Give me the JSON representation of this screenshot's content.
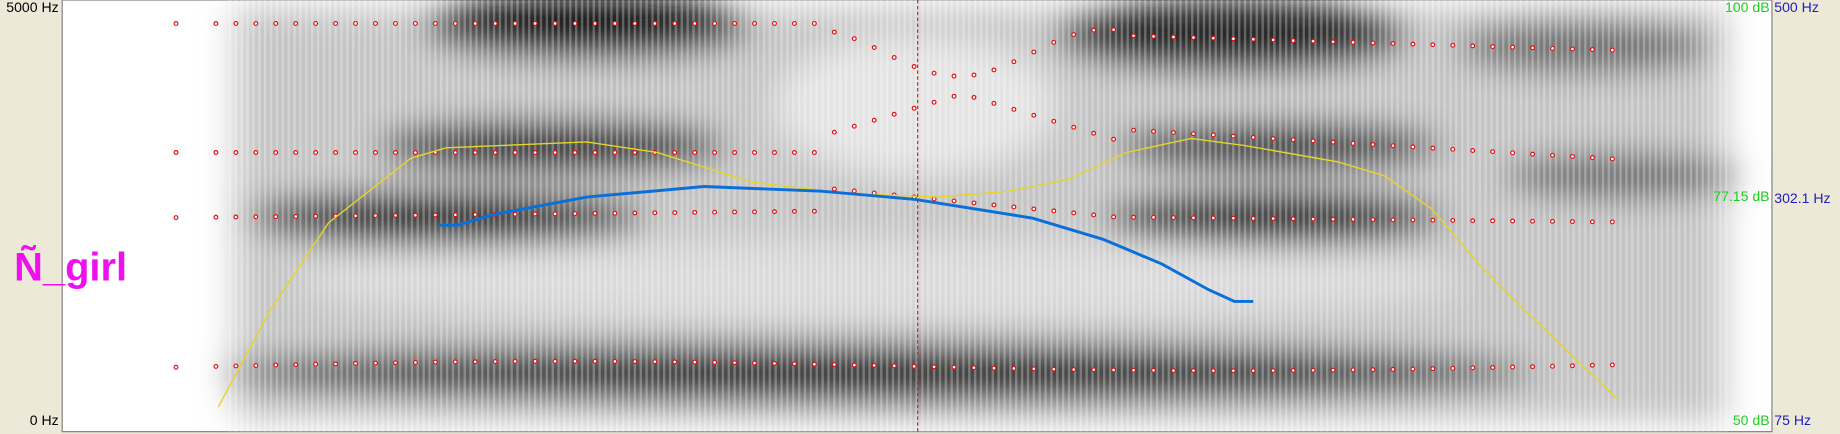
{
  "left_axis": {
    "top": "5000 Hz",
    "bottom": "0 Hz"
  },
  "right_axis": {
    "intensity_top": "100 dB",
    "pitch_top": "500 Hz",
    "intensity_cursor": "77.15 dB",
    "pitch_cursor": "302.1 Hz",
    "intensity_bottom": "50 dB",
    "pitch_bottom": "75 Hz"
  },
  "annotation": "Ñ_girl"
}
